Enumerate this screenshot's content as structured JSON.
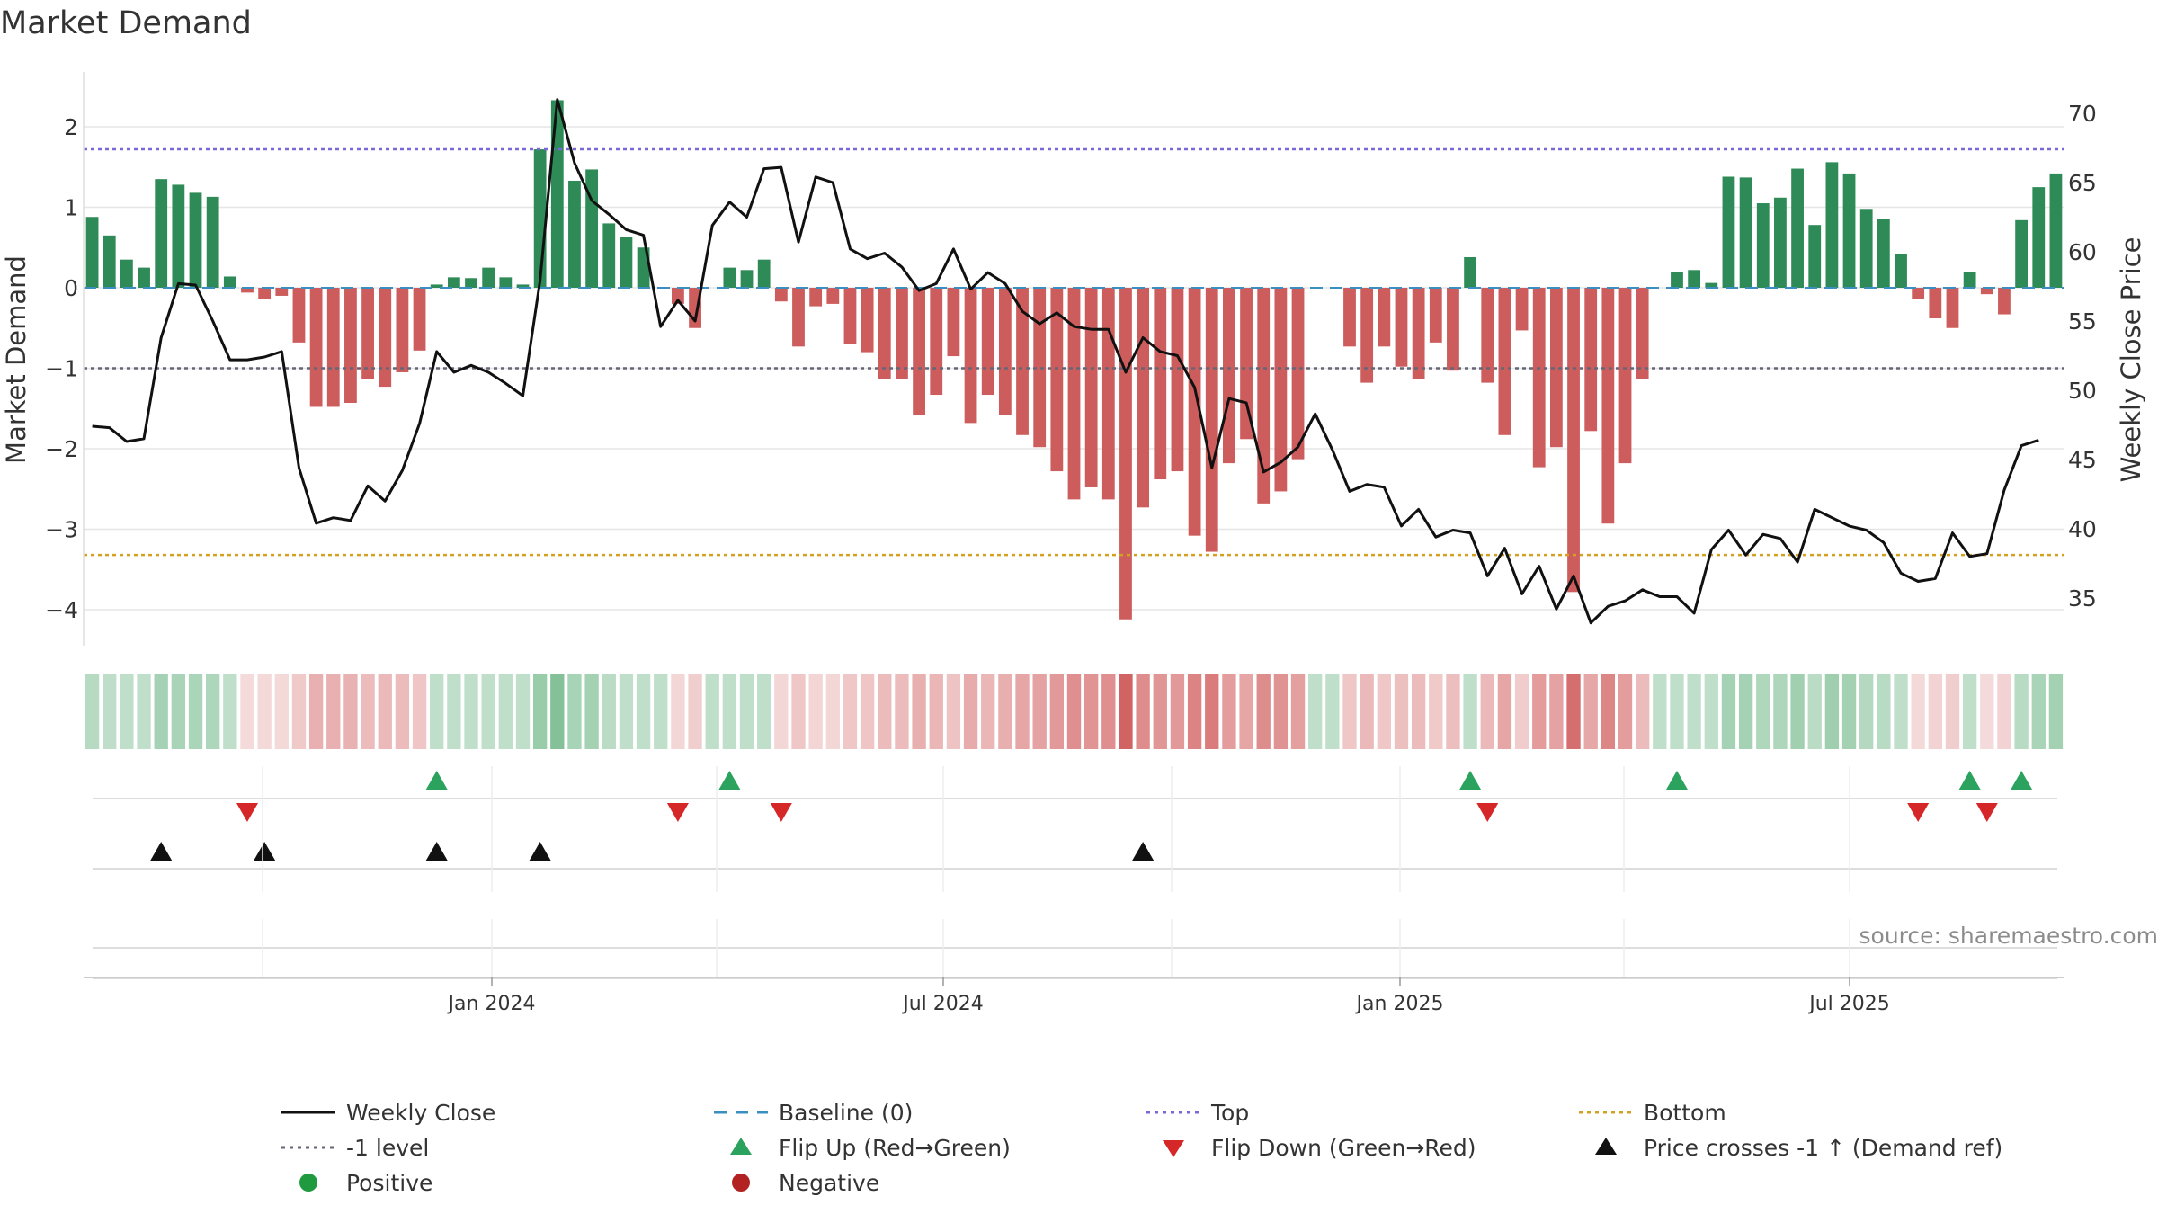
{
  "chart_data": {
    "type": "bar",
    "title": "Market Demand",
    "ylabel_left": "Market Demand",
    "ylabel_right": "Weekly Close Price",
    "source_note": "source: sharemaestro.com",
    "ylim_left": [
      -4.5,
      2.6
    ],
    "ylim_right": [
      32,
      73
    ],
    "left_ticks": [
      2,
      1,
      0,
      -1,
      -2,
      -3,
      -4
    ],
    "right_ticks": [
      70,
      65,
      60,
      55,
      50,
      45,
      40,
      35
    ],
    "top_level": 1.72,
    "bottom_level": -3.32,
    "ref_level": -1,
    "x_ticks": [
      "Jan 2024",
      "Jul 2024",
      "Jan 2025",
      "Jul 2025"
    ],
    "demand": [
      0.88,
      0.65,
      0.35,
      0.25,
      1.35,
      1.28,
      1.18,
      1.13,
      0.14,
      -0.06,
      -0.14,
      -0.1,
      -0.68,
      -1.48,
      -1.48,
      -1.43,
      -1.13,
      -1.23,
      -1.05,
      -0.78,
      0.04,
      0.13,
      0.12,
      0.25,
      0.13,
      0.04,
      1.72,
      2.33,
      1.33,
      1.47,
      0.8,
      0.63,
      0.5,
      0.0,
      -0.2,
      -0.5,
      0.0,
      0.25,
      0.22,
      0.35,
      -0.17,
      -0.73,
      -0.23,
      -0.2,
      -0.7,
      -0.8,
      -1.13,
      -1.13,
      -1.58,
      -1.33,
      -0.85,
      -1.68,
      -1.33,
      -1.58,
      -1.83,
      -1.98,
      -2.28,
      -2.63,
      -2.48,
      -2.63,
      -4.12,
      -2.73,
      -2.38,
      -2.28,
      -3.08,
      -3.28,
      -2.18,
      -1.88,
      -2.68,
      -2.53,
      -2.13,
      0.0,
      0.0,
      -0.73,
      -1.18,
      -0.73,
      -0.98,
      -1.13,
      -0.68,
      -1.03,
      0.38,
      -1.18,
      -1.83,
      -0.53,
      -2.23,
      -1.98,
      -3.78,
      -1.78,
      -2.93,
      -2.18,
      -1.13,
      0.0,
      0.2,
      0.22,
      0.06,
      1.38,
      1.37,
      1.05,
      1.12,
      1.48,
      0.78,
      1.56,
      1.42,
      0.98,
      0.86,
      0.42,
      -0.14,
      -0.38,
      -0.5,
      0.2,
      -0.08,
      -0.33,
      0.84,
      1.25,
      1.42
    ],
    "weekly_close": [
      47.4,
      47.3,
      46.3,
      46.5,
      53.8,
      57.7,
      57.6,
      55,
      52.2,
      52.2,
      52.4,
      52.8,
      44.4,
      40.4,
      40.8,
      40.6,
      43.1,
      42,
      44.2,
      47.6,
      52.8,
      51.3,
      51.8,
      51.3,
      50.5,
      49.6,
      57.9,
      71,
      66.4,
      63.7,
      62.7,
      61.6,
      61.2,
      54.6,
      56.5,
      55,
      61.9,
      63.6,
      62.5,
      66,
      66.1,
      60.7,
      65.4,
      65,
      60.2,
      59.5,
      59.9,
      58.9,
      57.2,
      57.7,
      60.2,
      57.3,
      58.5,
      57.7,
      55.7,
      54.8,
      55.6,
      54.6,
      54.4,
      54.4,
      51.3,
      53.8,
      52.8,
      52.5,
      50.2,
      44.4,
      49.4,
      49.1,
      44.1,
      44.8,
      45.9,
      48.3,
      45.7,
      42.7,
      43.2,
      43,
      40.2,
      41.4,
      39.4,
      39.9,
      39.7,
      36.6,
      38.6,
      35.3,
      37.3,
      34.2,
      36.6,
      33.2,
      34.4,
      34.8,
      35.6,
      35.1,
      35.1,
      33.9,
      38.5,
      39.9,
      38.1,
      39.6,
      39.3,
      37.6,
      41.4,
      40.8,
      40.2,
      39.9,
      39,
      36.8,
      36.2,
      36.4,
      39.7,
      38,
      38.2,
      42.8,
      46,
      46.4
    ],
    "flip_up_weeks": [
      20,
      37,
      80,
      92,
      109,
      112
    ],
    "flip_down_weeks": [
      9,
      34,
      40,
      81,
      106,
      110
    ],
    "price_cross_weeks": [
      4,
      10,
      20,
      26,
      61
    ],
    "legend": [
      {
        "label": "Weekly Close",
        "symbol": "solid-line",
        "color": "#111111"
      },
      {
        "label": "Baseline (0)",
        "symbol": "dashed-line",
        "color": "#3a8fc0"
      },
      {
        "label": "Top",
        "symbol": "dotted-line",
        "color": "#7b68d6"
      },
      {
        "label": "Bottom",
        "symbol": "dotted-line",
        "color": "#d4a020"
      },
      {
        "label": "-1 level",
        "symbol": "dotted-line",
        "color": "#666677"
      },
      {
        "label": "Flip Up (Red→Green)",
        "symbol": "up-triangle",
        "color": "#2ca25f"
      },
      {
        "label": "Flip Down (Green→Red)",
        "symbol": "down-triangle",
        "color": "#d62728"
      },
      {
        "label": "Price crosses -1 ↑ (Demand ref)",
        "symbol": "up-triangle",
        "color": "#111111"
      },
      {
        "label": "Positive",
        "symbol": "circle",
        "color": "#1f9a3f"
      },
      {
        "label": "Negative",
        "symbol": "circle",
        "color": "#b22222"
      }
    ],
    "colors": {
      "positive_bar": "#2e8b57",
      "negative_bar": "#cd5c5c",
      "close_line": "#111111",
      "baseline": "#3a8fc0",
      "top": "#7b68d6",
      "bottom": "#d4a020",
      "ref": "#666677",
      "flip_up": "#2ca25f",
      "flip_down": "#d62728",
      "cross": "#111111",
      "grid": "#e6e6e6"
    }
  }
}
